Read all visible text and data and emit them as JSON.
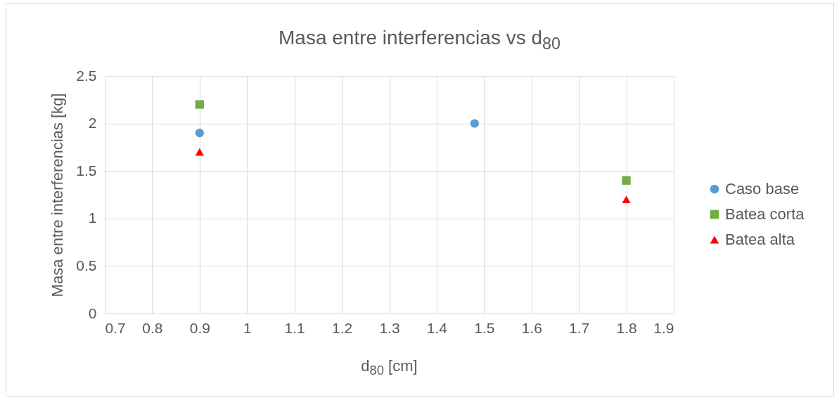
{
  "chart_data": {
    "type": "scatter",
    "title": "Masa entre interferencias vs d$_{80}$",
    "xlabel": "d$_{80}$ [cm]",
    "ylabel": "Masa entre interferencias [kg]",
    "xlim": [
      0.7,
      1.9
    ],
    "xticks": [
      0.7,
      0.8,
      0.9,
      1,
      1.1,
      1.2,
      1.3,
      1.4,
      1.5,
      1.6,
      1.7,
      1.8,
      1.9
    ],
    "ylim": [
      0,
      2.5
    ],
    "yticks": [
      0,
      0.5,
      1,
      1.5,
      2,
      2.5
    ],
    "grid": true,
    "legend": "right",
    "series": [
      {
        "name": "Caso base",
        "color": "#5b9bd5",
        "marker": "circle",
        "x": [
          0.9,
          1.48
        ],
        "values": [
          1.9,
          2.0
        ]
      },
      {
        "name": "Batea corta",
        "color": "#70ad47",
        "marker": "square",
        "x": [
          0.9,
          1.8
        ],
        "values": [
          2.2,
          1.4
        ]
      },
      {
        "name": "Batea alta",
        "color": "#ff0000",
        "marker": "triangle",
        "x": [
          0.9,
          1.8
        ],
        "values": [
          1.7,
          1.2
        ]
      }
    ]
  }
}
